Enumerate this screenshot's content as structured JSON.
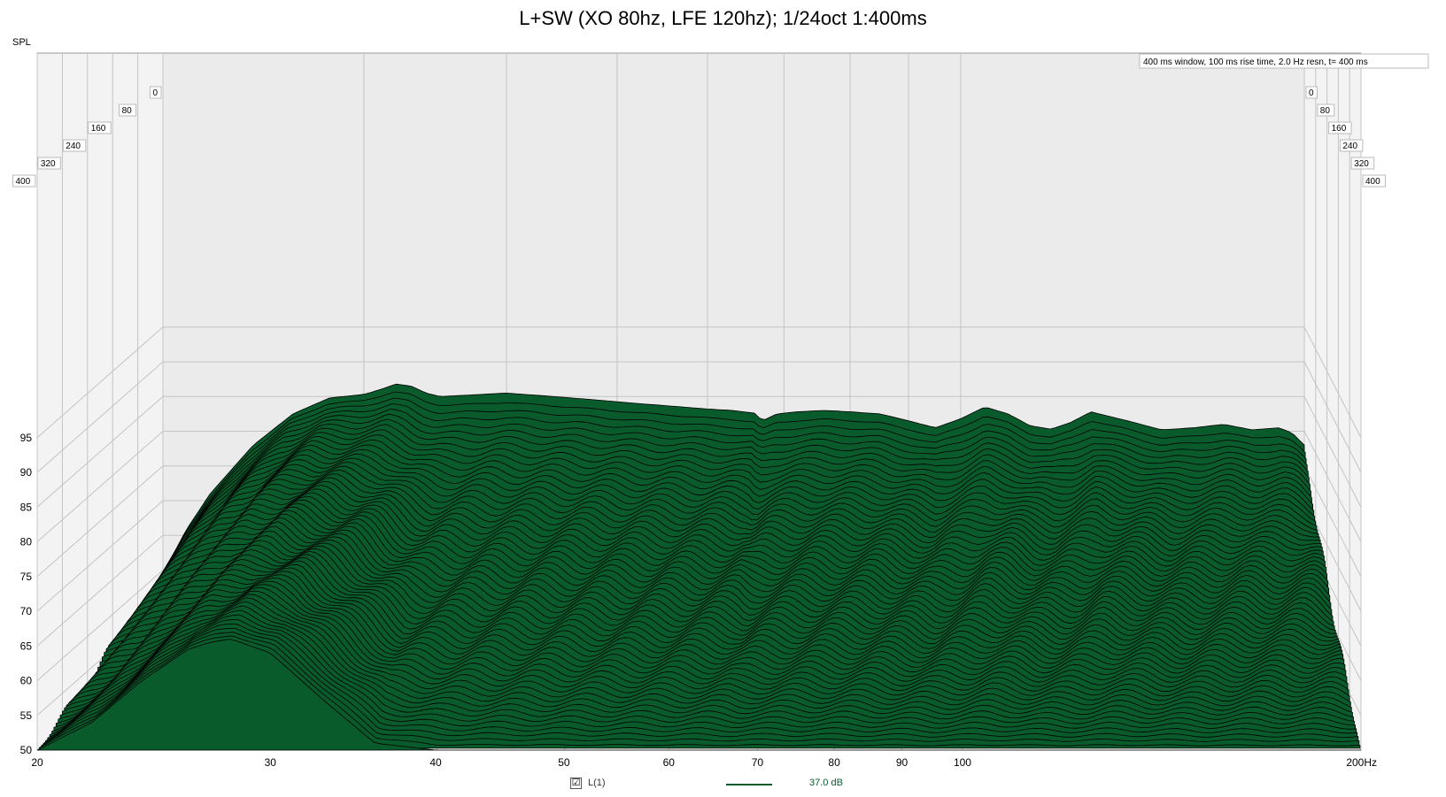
{
  "colors": {
    "fill": "#0a5b2c",
    "edge": "#000000",
    "floor": "#ebebeb",
    "grid": "#c4c4c4"
  },
  "chart_data": {
    "type": "area",
    "subtype": "waterfall",
    "title": "L+SW (XO 80hz, LFE 120hz); 1/24oct 1:400ms",
    "ylabel": "SPL",
    "xlabel": "",
    "x_scale": "log",
    "xlim": [
      20,
      200
    ],
    "ylim": [
      50,
      98
    ],
    "x_ticks": [
      {
        "value": 20,
        "label": "20"
      },
      {
        "value": 30,
        "label": "30"
      },
      {
        "value": 40,
        "label": "40"
      },
      {
        "value": 50,
        "label": "50"
      },
      {
        "value": 60,
        "label": "60"
      },
      {
        "value": 70,
        "label": "70"
      },
      {
        "value": 80,
        "label": "80"
      },
      {
        "value": 90,
        "label": "90"
      },
      {
        "value": 100,
        "label": "100"
      },
      {
        "value": 200,
        "label": "200Hz"
      }
    ],
    "y_ticks": [
      50,
      55,
      60,
      65,
      70,
      75,
      80,
      85,
      90,
      95
    ],
    "time_ticks_ms": [
      0,
      80,
      160,
      240,
      320,
      400
    ],
    "annotation": "400 ms window, 100 ms rise time,  2.0 Hz resn, t= 400 ms",
    "grid": true,
    "legend": {
      "position": "bottom",
      "label": "L(1)",
      "checked": "☑",
      "value": "37.0 dB"
    },
    "front_slice_t0_ms": {
      "x": [
        20,
        21,
        22,
        24,
        26,
        28,
        30,
        31,
        32,
        33,
        34,
        35,
        37,
        40,
        44,
        48,
        52,
        56,
        60,
        63,
        66,
        67,
        68,
        69,
        72,
        76,
        80,
        85,
        90,
        95,
        100,
        105,
        110,
        115,
        120,
        125,
        130,
        140,
        150,
        160,
        170,
        180,
        190,
        195,
        200
      ],
      "y": [
        59.5,
        66,
        71,
        78,
        82.5,
        84.8,
        85.3,
        86,
        86.8,
        86.5,
        85.5,
        85,
        85.2,
        85.5,
        85,
        84.5,
        84,
        83.6,
        83.2,
        83,
        82.6,
        81.5,
        82,
        82.5,
        82.8,
        83,
        82.8,
        82.5,
        81.5,
        80.5,
        81.8,
        83.5,
        82.5,
        80.8,
        80.3,
        81.3,
        82.8,
        81.5,
        80.2,
        80.5,
        81,
        80.2,
        80.5,
        79.8,
        78
      ]
    },
    "last_slice_t400_ms": {
      "x": [
        20,
        22,
        24,
        26,
        27,
        28,
        30,
        33,
        36,
        40,
        44,
        48,
        52,
        56,
        60,
        65,
        70,
        75,
        80,
        90,
        100,
        110,
        130,
        160,
        200
      ],
      "y": [
        50,
        54,
        60,
        64.5,
        65.5,
        66,
        64,
        57,
        51,
        50,
        50,
        50,
        50,
        50,
        50,
        50,
        50,
        50,
        50,
        50,
        50,
        50,
        50,
        50,
        50
      ]
    },
    "series": [
      {
        "values_note_free": true
      }
    ]
  }
}
